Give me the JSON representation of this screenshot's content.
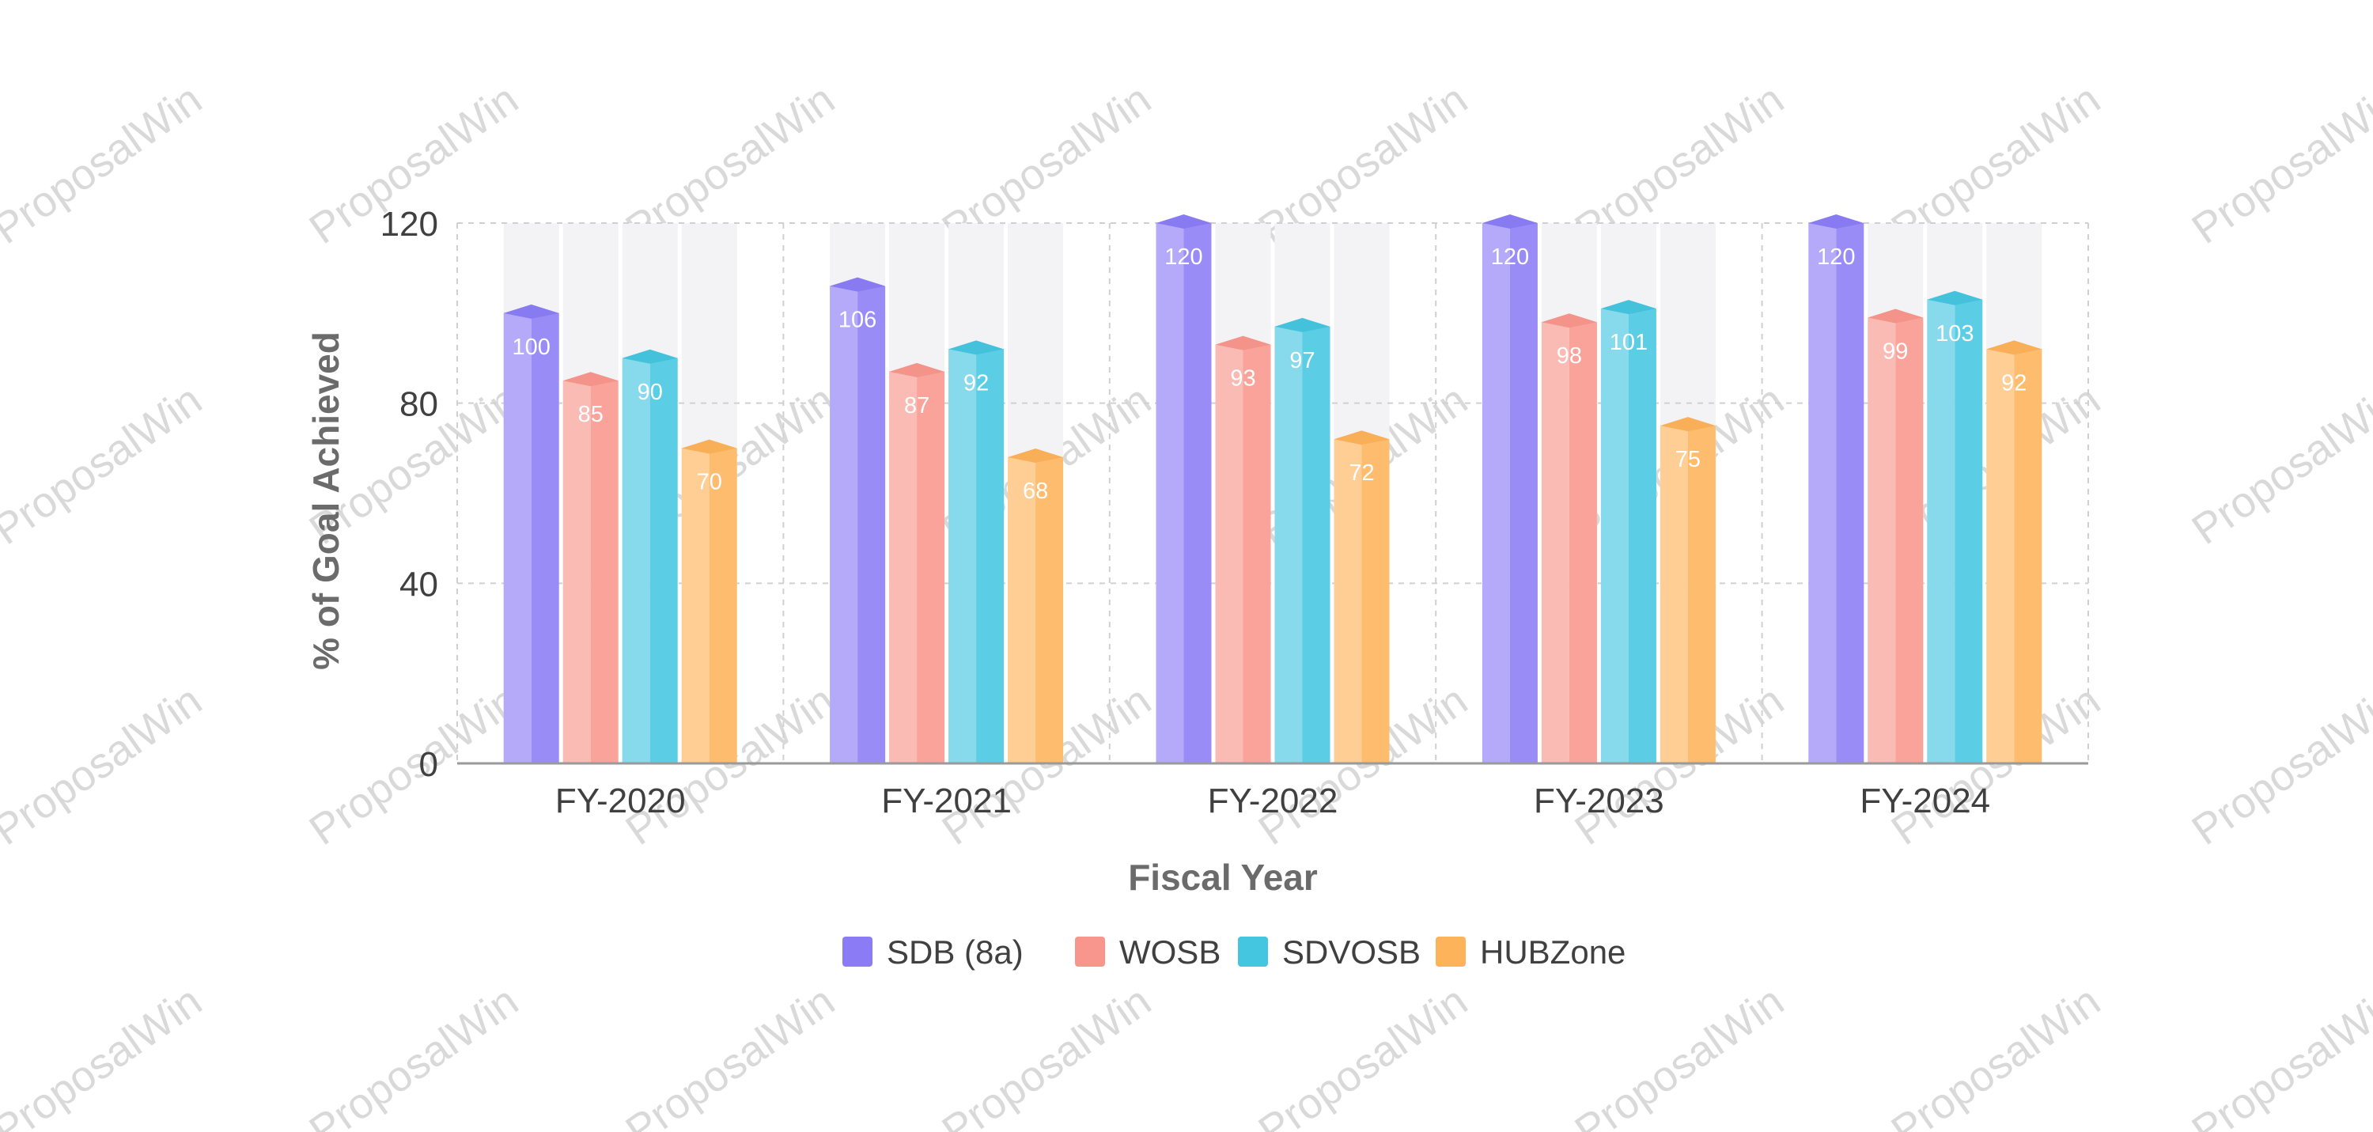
{
  "watermark": {
    "text": "ProposalWin"
  },
  "chart_data": {
    "type": "bar",
    "title": "",
    "xlabel": "Fiscal Year",
    "ylabel": "% of Goal Achieved",
    "ylim": [
      0,
      120
    ],
    "yticks": [
      0,
      40,
      80,
      120
    ],
    "grid": true,
    "legend_position": "bottom",
    "categories": [
      "FY-2020",
      "FY-2021",
      "FY-2022",
      "FY-2023",
      "FY-2024"
    ],
    "series": [
      {
        "name": "SDB (8a)",
        "color": "#8B7CF6",
        "values": [
          100,
          106,
          120,
          120,
          120
        ]
      },
      {
        "name": "WOSB",
        "color": "#F8968D",
        "values": [
          85,
          87,
          93,
          98,
          99
        ]
      },
      {
        "name": "SDVOSB",
        "color": "#45C6E0",
        "values": [
          90,
          92,
          97,
          101,
          103
        ]
      },
      {
        "name": "HUBZone",
        "color": "#FDB35A",
        "values": [
          70,
          68,
          72,
          75,
          92
        ]
      }
    ]
  }
}
